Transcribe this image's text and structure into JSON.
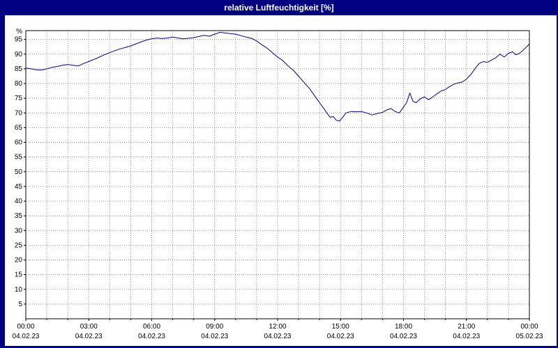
{
  "title": "relative Luftfeuchtigkeit [%]",
  "colors": {
    "titlebar_bg": "#000080",
    "titlebar_text": "#ffffff",
    "border": "#000080",
    "plot_bg": "#ffffff",
    "grid": "#909090",
    "axis": "#000000",
    "line": "#000080"
  },
  "chart_data": {
    "type": "line",
    "title": "relative Luftfeuchtigkeit [%]",
    "ylabel": "%",
    "ylim": [
      0,
      98
    ],
    "yticks": [
      5,
      10,
      15,
      20,
      25,
      30,
      35,
      40,
      45,
      50,
      55,
      60,
      65,
      70,
      75,
      80,
      85,
      90,
      95
    ],
    "x_hours_range": [
      0,
      24
    ],
    "minor_grid_hours": 1,
    "grid": "dotted",
    "legend": "none",
    "x_major_ticks": [
      {
        "hour": 0,
        "time": "00:00",
        "date": "04.02.23"
      },
      {
        "hour": 3,
        "time": "03:00",
        "date": "04.02.23"
      },
      {
        "hour": 6,
        "time": "06:00",
        "date": "04.02.23"
      },
      {
        "hour": 9,
        "time": "09:00",
        "date": "04.02.23"
      },
      {
        "hour": 12,
        "time": "12:00",
        "date": "04.02.23"
      },
      {
        "hour": 15,
        "time": "15:00",
        "date": "04.02.23"
      },
      {
        "hour": 18,
        "time": "18:00",
        "date": "04.02.23"
      },
      {
        "hour": 21,
        "time": "21:00",
        "date": "04.02.23"
      },
      {
        "hour": 24,
        "time": "00:00",
        "date": "05.02.23"
      }
    ],
    "series": [
      {
        "name": "relative Luftfeuchtigkeit",
        "points": [
          [
            0,
            85.3
          ],
          [
            0.25,
            85.0
          ],
          [
            0.5,
            84.7
          ],
          [
            0.75,
            84.6
          ],
          [
            1,
            85.0
          ],
          [
            1.25,
            85.5
          ],
          [
            1.5,
            85.8
          ],
          [
            1.75,
            86.2
          ],
          [
            2,
            86.5
          ],
          [
            2.25,
            86.2
          ],
          [
            2.5,
            86.0
          ],
          [
            2.75,
            86.8
          ],
          [
            3,
            87.5
          ],
          [
            3.25,
            88.2
          ],
          [
            3.5,
            89.0
          ],
          [
            3.75,
            89.8
          ],
          [
            4,
            90.5
          ],
          [
            4.25,
            91.2
          ],
          [
            4.5,
            91.8
          ],
          [
            4.75,
            92.3
          ],
          [
            5,
            92.8
          ],
          [
            5.25,
            93.5
          ],
          [
            5.5,
            94.2
          ],
          [
            5.75,
            94.8
          ],
          [
            6,
            95.2
          ],
          [
            6.25,
            95.5
          ],
          [
            6.5,
            95.3
          ],
          [
            6.75,
            95.5
          ],
          [
            7,
            95.8
          ],
          [
            7.25,
            95.5
          ],
          [
            7.5,
            95.2
          ],
          [
            7.75,
            95.4
          ],
          [
            8,
            95.6
          ],
          [
            8.25,
            96.0
          ],
          [
            8.5,
            96.4
          ],
          [
            8.75,
            96.1
          ],
          [
            9,
            96.8
          ],
          [
            9.25,
            97.4
          ],
          [
            9.5,
            97.2
          ],
          [
            9.75,
            97.0
          ],
          [
            10,
            96.8
          ],
          [
            10.25,
            96.3
          ],
          [
            10.5,
            95.8
          ],
          [
            10.75,
            95.4
          ],
          [
            11,
            94.5
          ],
          [
            11.25,
            93.2
          ],
          [
            11.5,
            92.0
          ],
          [
            11.75,
            90.5
          ],
          [
            12,
            89.0
          ],
          [
            12.25,
            87.8
          ],
          [
            12.5,
            86.0
          ],
          [
            12.75,
            84.5
          ],
          [
            13,
            82.5
          ],
          [
            13.25,
            80.5
          ],
          [
            13.5,
            78.5
          ],
          [
            13.75,
            76.0
          ],
          [
            14,
            73.5
          ],
          [
            14.25,
            71.0
          ],
          [
            14.5,
            68.5
          ],
          [
            14.65,
            68.8
          ],
          [
            14.8,
            67.5
          ],
          [
            14.95,
            67.2
          ],
          [
            15.1,
            68.5
          ],
          [
            15.25,
            70.0
          ],
          [
            15.5,
            70.5
          ],
          [
            15.75,
            70.4
          ],
          [
            16,
            70.5
          ],
          [
            16.25,
            70.0
          ],
          [
            16.5,
            69.3
          ],
          [
            16.75,
            69.8
          ],
          [
            17,
            70.2
          ],
          [
            17.2,
            71.0
          ],
          [
            17.4,
            71.5
          ],
          [
            17.6,
            70.5
          ],
          [
            17.8,
            70.0
          ],
          [
            18,
            72.0
          ],
          [
            18.15,
            73.5
          ],
          [
            18.3,
            76.8
          ],
          [
            18.45,
            74.0
          ],
          [
            18.6,
            73.5
          ],
          [
            18.8,
            74.8
          ],
          [
            19,
            75.5
          ],
          [
            19.2,
            74.5
          ],
          [
            19.4,
            75.5
          ],
          [
            19.6,
            76.5
          ],
          [
            19.8,
            77.5
          ],
          [
            20,
            78.0
          ],
          [
            20.2,
            79.0
          ],
          [
            20.4,
            79.8
          ],
          [
            20.6,
            80.2
          ],
          [
            20.8,
            80.5
          ],
          [
            21,
            81.5
          ],
          [
            21.2,
            83.0
          ],
          [
            21.4,
            85.0
          ],
          [
            21.6,
            86.8
          ],
          [
            21.8,
            87.5
          ],
          [
            22,
            87.2
          ],
          [
            22.2,
            88.0
          ],
          [
            22.4,
            88.8
          ],
          [
            22.6,
            90.0
          ],
          [
            22.8,
            89.0
          ],
          [
            23,
            90.3
          ],
          [
            23.2,
            90.8
          ],
          [
            23.35,
            89.8
          ],
          [
            23.5,
            90.2
          ],
          [
            23.65,
            91.0
          ],
          [
            23.8,
            92.0
          ],
          [
            24,
            93.5
          ]
        ]
      }
    ]
  }
}
